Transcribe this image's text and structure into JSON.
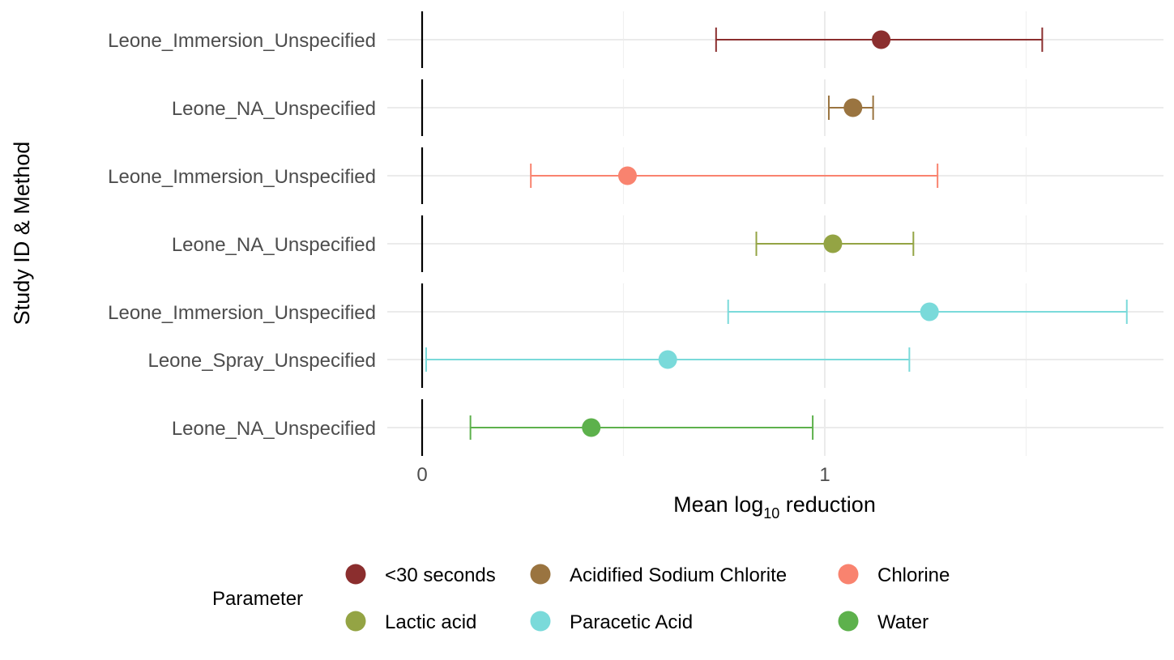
{
  "chart_data": {
    "type": "scatter",
    "subtype": "forest-plot",
    "xlabel_main": "Mean log",
    "xlabel_sub": "10",
    "xlabel_tail": " reduction",
    "ylabel": "Study ID & Method",
    "xlim": [
      0,
      1.83
    ],
    "x_ticks": [
      0,
      1
    ],
    "x_tick_labels": [
      "0",
      "1"
    ],
    "x_minor_gridlines": [
      0.5,
      1.5
    ],
    "reference_line": 0,
    "grid": true,
    "legend_position": "bottom",
    "legend_title": "Parameter",
    "panels": [
      {
        "parameter": "<30 seconds",
        "color": "#8B2E2E",
        "rows": [
          {
            "label": "Leone_Immersion_Unspecified",
            "mean": 1.14,
            "lower": 0.73,
            "upper": 1.54
          }
        ]
      },
      {
        "parameter": "Acidified Sodium Chlorite",
        "color": "#9A7440",
        "rows": [
          {
            "label": "Leone_NA_Unspecified",
            "mean": 1.07,
            "lower": 1.01,
            "upper": 1.12
          }
        ]
      },
      {
        "parameter": "Chlorine",
        "color": "#F9836F",
        "rows": [
          {
            "label": "Leone_Immersion_Unspecified",
            "mean": 0.51,
            "lower": 0.27,
            "upper": 1.28
          }
        ]
      },
      {
        "parameter": "Lactic acid",
        "color": "#94A444",
        "rows": [
          {
            "label": "Leone_NA_Unspecified",
            "mean": 1.02,
            "lower": 0.83,
            "upper": 1.22
          }
        ]
      },
      {
        "parameter": "Paracetic Acid",
        "color": "#7ADADA",
        "rows": [
          {
            "label": "Leone_Immersion_Unspecified",
            "mean": 1.26,
            "lower": 0.76,
            "upper": 1.75
          },
          {
            "label": "Leone_Spray_Unspecified",
            "mean": 0.61,
            "lower": 0.01,
            "upper": 1.21
          }
        ]
      },
      {
        "parameter": "Water",
        "color": "#5DB14C",
        "rows": [
          {
            "label": "Leone_NA_Unspecified",
            "mean": 0.42,
            "lower": 0.12,
            "upper": 0.97
          }
        ]
      }
    ],
    "legend": [
      {
        "label": "<30 seconds",
        "color": "#8B2E2E"
      },
      {
        "label": "Acidified Sodium Chlorite",
        "color": "#9A7440"
      },
      {
        "label": "Chlorine",
        "color": "#F9836F"
      },
      {
        "label": "Lactic acid",
        "color": "#94A444"
      },
      {
        "label": "Paracetic Acid",
        "color": "#7ADADA"
      },
      {
        "label": "Water",
        "color": "#5DB14C"
      }
    ]
  }
}
